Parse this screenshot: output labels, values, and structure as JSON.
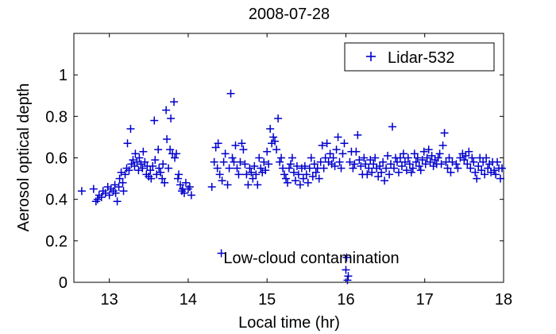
{
  "chart_data": {
    "type": "scatter",
    "title": "2008-07-28",
    "xlabel": "Local time (hr)",
    "ylabel": "Aerosol optical depth",
    "xlim": [
      12.55,
      18.0
    ],
    "ylim": [
      0,
      1.2
    ],
    "x_ticks": [
      13,
      14,
      15,
      16,
      17,
      18
    ],
    "y_ticks": [
      0,
      0.2,
      0.4,
      0.6,
      0.8,
      1
    ],
    "x_tick_labels": [
      "13",
      "14",
      "15",
      "16",
      "17",
      "18"
    ],
    "y_tick_labels": [
      "0",
      "0.2",
      "0.4",
      "0.6",
      "0.8",
      "1"
    ],
    "grid": false,
    "legend_position": "top-right",
    "annotation": "Low-cloud contamination",
    "series": [
      {
        "name": "Lidar-532",
        "color": "#0000cc",
        "marker": "plus",
        "points": [
          [
            12.65,
            0.44
          ],
          [
            12.8,
            0.45
          ],
          [
            12.83,
            0.39
          ],
          [
            12.85,
            0.4
          ],
          [
            12.87,
            0.42
          ],
          [
            12.9,
            0.41
          ],
          [
            12.92,
            0.44
          ],
          [
            12.95,
            0.43
          ],
          [
            12.98,
            0.46
          ],
          [
            13.0,
            0.42
          ],
          [
            13.02,
            0.45
          ],
          [
            13.05,
            0.44
          ],
          [
            13.07,
            0.47
          ],
          [
            13.08,
            0.43
          ],
          [
            13.1,
            0.39
          ],
          [
            13.12,
            0.46
          ],
          [
            13.13,
            0.5
          ],
          [
            13.15,
            0.53
          ],
          [
            13.17,
            0.48
          ],
          [
            13.18,
            0.44
          ],
          [
            13.2,
            0.52
          ],
          [
            13.22,
            0.55
          ],
          [
            13.23,
            0.67
          ],
          [
            13.25,
            0.54
          ],
          [
            13.27,
            0.74
          ],
          [
            13.28,
            0.57
          ],
          [
            13.3,
            0.59
          ],
          [
            13.32,
            0.56
          ],
          [
            13.33,
            0.62
          ],
          [
            13.35,
            0.58
          ],
          [
            13.37,
            0.54
          ],
          [
            13.38,
            0.6
          ],
          [
            13.4,
            0.57
          ],
          [
            13.42,
            0.55
          ],
          [
            13.43,
            0.63
          ],
          [
            13.45,
            0.58
          ],
          [
            13.47,
            0.52
          ],
          [
            13.48,
            0.56
          ],
          [
            13.5,
            0.51
          ],
          [
            13.52,
            0.54
          ],
          [
            13.53,
            0.5
          ],
          [
            13.55,
            0.56
          ],
          [
            13.57,
            0.78
          ],
          [
            13.58,
            0.59
          ],
          [
            13.6,
            0.52
          ],
          [
            13.62,
            0.64
          ],
          [
            13.63,
            0.55
          ],
          [
            13.65,
            0.53
          ],
          [
            13.67,
            0.5
          ],
          [
            13.68,
            0.57
          ],
          [
            13.7,
            0.48
          ],
          [
            13.72,
            0.83
          ],
          [
            13.73,
            0.69
          ],
          [
            13.75,
            0.55
          ],
          [
            13.77,
            0.64
          ],
          [
            13.78,
            0.79
          ],
          [
            13.8,
            0.62
          ],
          [
            13.82,
            0.87
          ],
          [
            13.83,
            0.6
          ],
          [
            13.85,
            0.62
          ],
          [
            13.87,
            0.5
          ],
          [
            13.88,
            0.52
          ],
          [
            13.9,
            0.47
          ],
          [
            13.92,
            0.44
          ],
          [
            13.93,
            0.45
          ],
          [
            13.95,
            0.43
          ],
          [
            13.97,
            0.48
          ],
          [
            14.0,
            0.45
          ],
          [
            14.02,
            0.46
          ],
          [
            14.04,
            0.42
          ],
          [
            14.3,
            0.46
          ],
          [
            14.33,
            0.58
          ],
          [
            14.35,
            0.65
          ],
          [
            14.37,
            0.55
          ],
          [
            14.38,
            0.67
          ],
          [
            14.4,
            0.52
          ],
          [
            14.42,
            0.14
          ],
          [
            14.43,
            0.49
          ],
          [
            14.45,
            0.58
          ],
          [
            14.47,
            0.62
          ],
          [
            14.5,
            0.47
          ],
          [
            14.52,
            0.55
          ],
          [
            14.54,
            0.91
          ],
          [
            14.56,
            0.6
          ],
          [
            14.58,
            0.58
          ],
          [
            14.6,
            0.66
          ],
          [
            14.62,
            0.55
          ],
          [
            14.64,
            0.52
          ],
          [
            14.66,
            0.58
          ],
          [
            14.68,
            0.67
          ],
          [
            14.7,
            0.64
          ],
          [
            14.72,
            0.57
          ],
          [
            14.74,
            0.52
          ],
          [
            14.76,
            0.47
          ],
          [
            14.78,
            0.55
          ],
          [
            14.8,
            0.53
          ],
          [
            14.82,
            0.5
          ],
          [
            14.84,
            0.56
          ],
          [
            14.86,
            0.52
          ],
          [
            14.88,
            0.47
          ],
          [
            14.9,
            0.6
          ],
          [
            14.92,
            0.55
          ],
          [
            14.94,
            0.53
          ],
          [
            14.96,
            0.58
          ],
          [
            14.98,
            0.54
          ],
          [
            15.0,
            0.63
          ],
          [
            15.02,
            0.57
          ],
          [
            15.04,
            0.74
          ],
          [
            15.06,
            0.67
          ],
          [
            15.08,
            0.7
          ],
          [
            15.1,
            0.68
          ],
          [
            15.12,
            0.64
          ],
          [
            15.14,
            0.79
          ],
          [
            15.16,
            0.58
          ],
          [
            15.18,
            0.6
          ],
          [
            15.2,
            0.55
          ],
          [
            15.22,
            0.52
          ],
          [
            15.24,
            0.5
          ],
          [
            15.26,
            0.48
          ],
          [
            15.28,
            0.55
          ],
          [
            15.3,
            0.57
          ],
          [
            15.32,
            0.6
          ],
          [
            15.34,
            0.53
          ],
          [
            15.36,
            0.49
          ],
          [
            15.38,
            0.56
          ],
          [
            15.4,
            0.52
          ],
          [
            15.42,
            0.47
          ],
          [
            15.44,
            0.55
          ],
          [
            15.46,
            0.5
          ],
          [
            15.48,
            0.56
          ],
          [
            15.5,
            0.52
          ],
          [
            15.52,
            0.48
          ],
          [
            15.54,
            0.55
          ],
          [
            15.56,
            0.6
          ],
          [
            15.58,
            0.51
          ],
          [
            15.6,
            0.57
          ],
          [
            15.62,
            0.53
          ],
          [
            15.64,
            0.55
          ],
          [
            15.66,
            0.5
          ],
          [
            15.68,
            0.58
          ],
          [
            15.7,
            0.66
          ],
          [
            15.72,
            0.55
          ],
          [
            15.74,
            0.6
          ],
          [
            15.76,
            0.67
          ],
          [
            15.78,
            0.58
          ],
          [
            15.8,
            0.62
          ],
          [
            15.82,
            0.57
          ],
          [
            15.84,
            0.6
          ],
          [
            15.86,
            0.56
          ],
          [
            15.88,
            0.64
          ],
          [
            15.9,
            0.7
          ],
          [
            15.92,
            0.58
          ],
          [
            15.94,
            0.55
          ],
          [
            15.96,
            0.62
          ],
          [
            15.98,
            0.67
          ],
          [
            16.0,
            0.06
          ],
          [
            16.01,
            0.12
          ],
          [
            16.02,
            0.01
          ],
          [
            16.03,
            0.03
          ],
          [
            16.05,
            0.58
          ],
          [
            16.07,
            0.63
          ],
          [
            16.09,
            0.55
          ],
          [
            16.11,
            0.57
          ],
          [
            16.13,
            0.63
          ],
          [
            16.15,
            0.71
          ],
          [
            16.17,
            0.59
          ],
          [
            16.19,
            0.56
          ],
          [
            16.21,
            0.52
          ],
          [
            16.23,
            0.6
          ],
          [
            16.25,
            0.57
          ],
          [
            16.27,
            0.52
          ],
          [
            16.29,
            0.55
          ],
          [
            16.31,
            0.59
          ],
          [
            16.33,
            0.53
          ],
          [
            16.35,
            0.57
          ],
          [
            16.37,
            0.6
          ],
          [
            16.39,
            0.55
          ],
          [
            16.41,
            0.51
          ],
          [
            16.43,
            0.56
          ],
          [
            16.45,
            0.53
          ],
          [
            16.47,
            0.58
          ],
          [
            16.49,
            0.49
          ],
          [
            16.51,
            0.55
          ],
          [
            16.53,
            0.61
          ],
          [
            16.55,
            0.52
          ],
          [
            16.57,
            0.57
          ],
          [
            16.59,
            0.75
          ],
          [
            16.61,
            0.55
          ],
          [
            16.63,
            0.6
          ],
          [
            16.65,
            0.58
          ],
          [
            16.67,
            0.53
          ],
          [
            16.69,
            0.6
          ],
          [
            16.71,
            0.56
          ],
          [
            16.73,
            0.62
          ],
          [
            16.75,
            0.58
          ],
          [
            16.77,
            0.54
          ],
          [
            16.79,
            0.6
          ],
          [
            16.81,
            0.57
          ],
          [
            16.83,
            0.53
          ],
          [
            16.85,
            0.55
          ],
          [
            16.87,
            0.62
          ],
          [
            16.89,
            0.58
          ],
          [
            16.91,
            0.6
          ],
          [
            16.93,
            0.56
          ],
          [
            16.95,
            0.54
          ],
          [
            16.97,
            0.59
          ],
          [
            16.99,
            0.63
          ],
          [
            17.01,
            0.57
          ],
          [
            17.03,
            0.6
          ],
          [
            17.05,
            0.64
          ],
          [
            17.07,
            0.58
          ],
          [
            17.09,
            0.61
          ],
          [
            17.11,
            0.56
          ],
          [
            17.13,
            0.59
          ],
          [
            17.15,
            0.57
          ],
          [
            17.17,
            0.6
          ],
          [
            17.19,
            0.62
          ],
          [
            17.21,
            0.57
          ],
          [
            17.23,
            0.66
          ],
          [
            17.25,
            0.72
          ],
          [
            17.27,
            0.58
          ],
          [
            17.29,
            0.55
          ],
          [
            17.31,
            0.6
          ],
          [
            17.33,
            0.53
          ],
          [
            17.35,
            0.58
          ],
          [
            17.4,
            0.57
          ],
          [
            17.42,
            0.55
          ],
          [
            17.45,
            0.6
          ],
          [
            17.48,
            0.62
          ],
          [
            17.5,
            0.59
          ],
          [
            17.52,
            0.61
          ],
          [
            17.54,
            0.57
          ],
          [
            17.56,
            0.63
          ],
          [
            17.58,
            0.55
          ],
          [
            17.6,
            0.6
          ],
          [
            17.62,
            0.58
          ],
          [
            17.64,
            0.53
          ],
          [
            17.66,
            0.5
          ],
          [
            17.68,
            0.56
          ],
          [
            17.7,
            0.6
          ],
          [
            17.72,
            0.54
          ],
          [
            17.74,
            0.58
          ],
          [
            17.76,
            0.52
          ],
          [
            17.78,
            0.6
          ],
          [
            17.8,
            0.55
          ],
          [
            17.82,
            0.57
          ],
          [
            17.84,
            0.53
          ],
          [
            17.86,
            0.58
          ],
          [
            17.88,
            0.54
          ],
          [
            17.9,
            0.52
          ],
          [
            17.92,
            0.58
          ],
          [
            17.94,
            0.55
          ],
          [
            17.96,
            0.5
          ],
          [
            17.98,
            0.55
          ]
        ]
      }
    ]
  }
}
